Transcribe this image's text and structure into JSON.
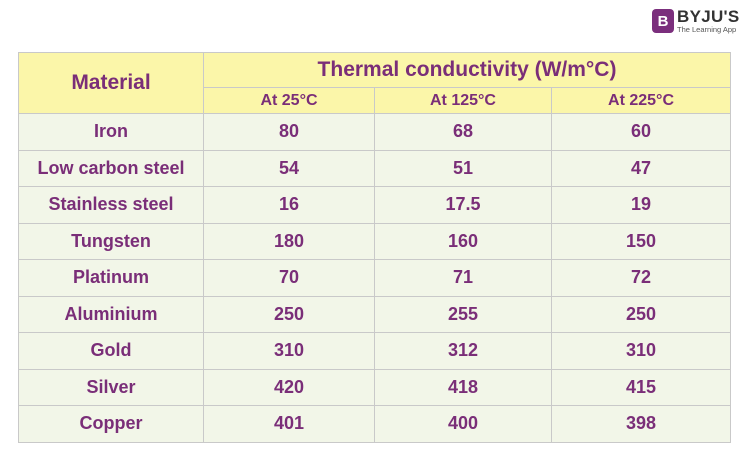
{
  "logo": {
    "mark": "B",
    "name": "BYJU'S",
    "tagline": "The Learning App"
  },
  "table": {
    "header": {
      "material": "Material",
      "group": "Thermal conductivity (W/m°C)",
      "columns": [
        "At 25°C",
        "At 125°C",
        "At 225°C"
      ]
    },
    "rows": [
      [
        "Iron",
        80,
        68,
        60
      ],
      [
        "Low carbon steel",
        54,
        51,
        47
      ],
      [
        "Stainless steel",
        16,
        17.5,
        19
      ],
      [
        "Tungsten",
        180,
        160,
        150
      ],
      [
        "Platinum",
        70,
        71,
        72
      ],
      [
        "Aluminium",
        250,
        255,
        250
      ],
      [
        "Gold",
        310,
        312,
        310
      ],
      [
        "Silver",
        420,
        418,
        415
      ],
      [
        "Copper",
        401,
        400,
        398
      ]
    ]
  }
}
